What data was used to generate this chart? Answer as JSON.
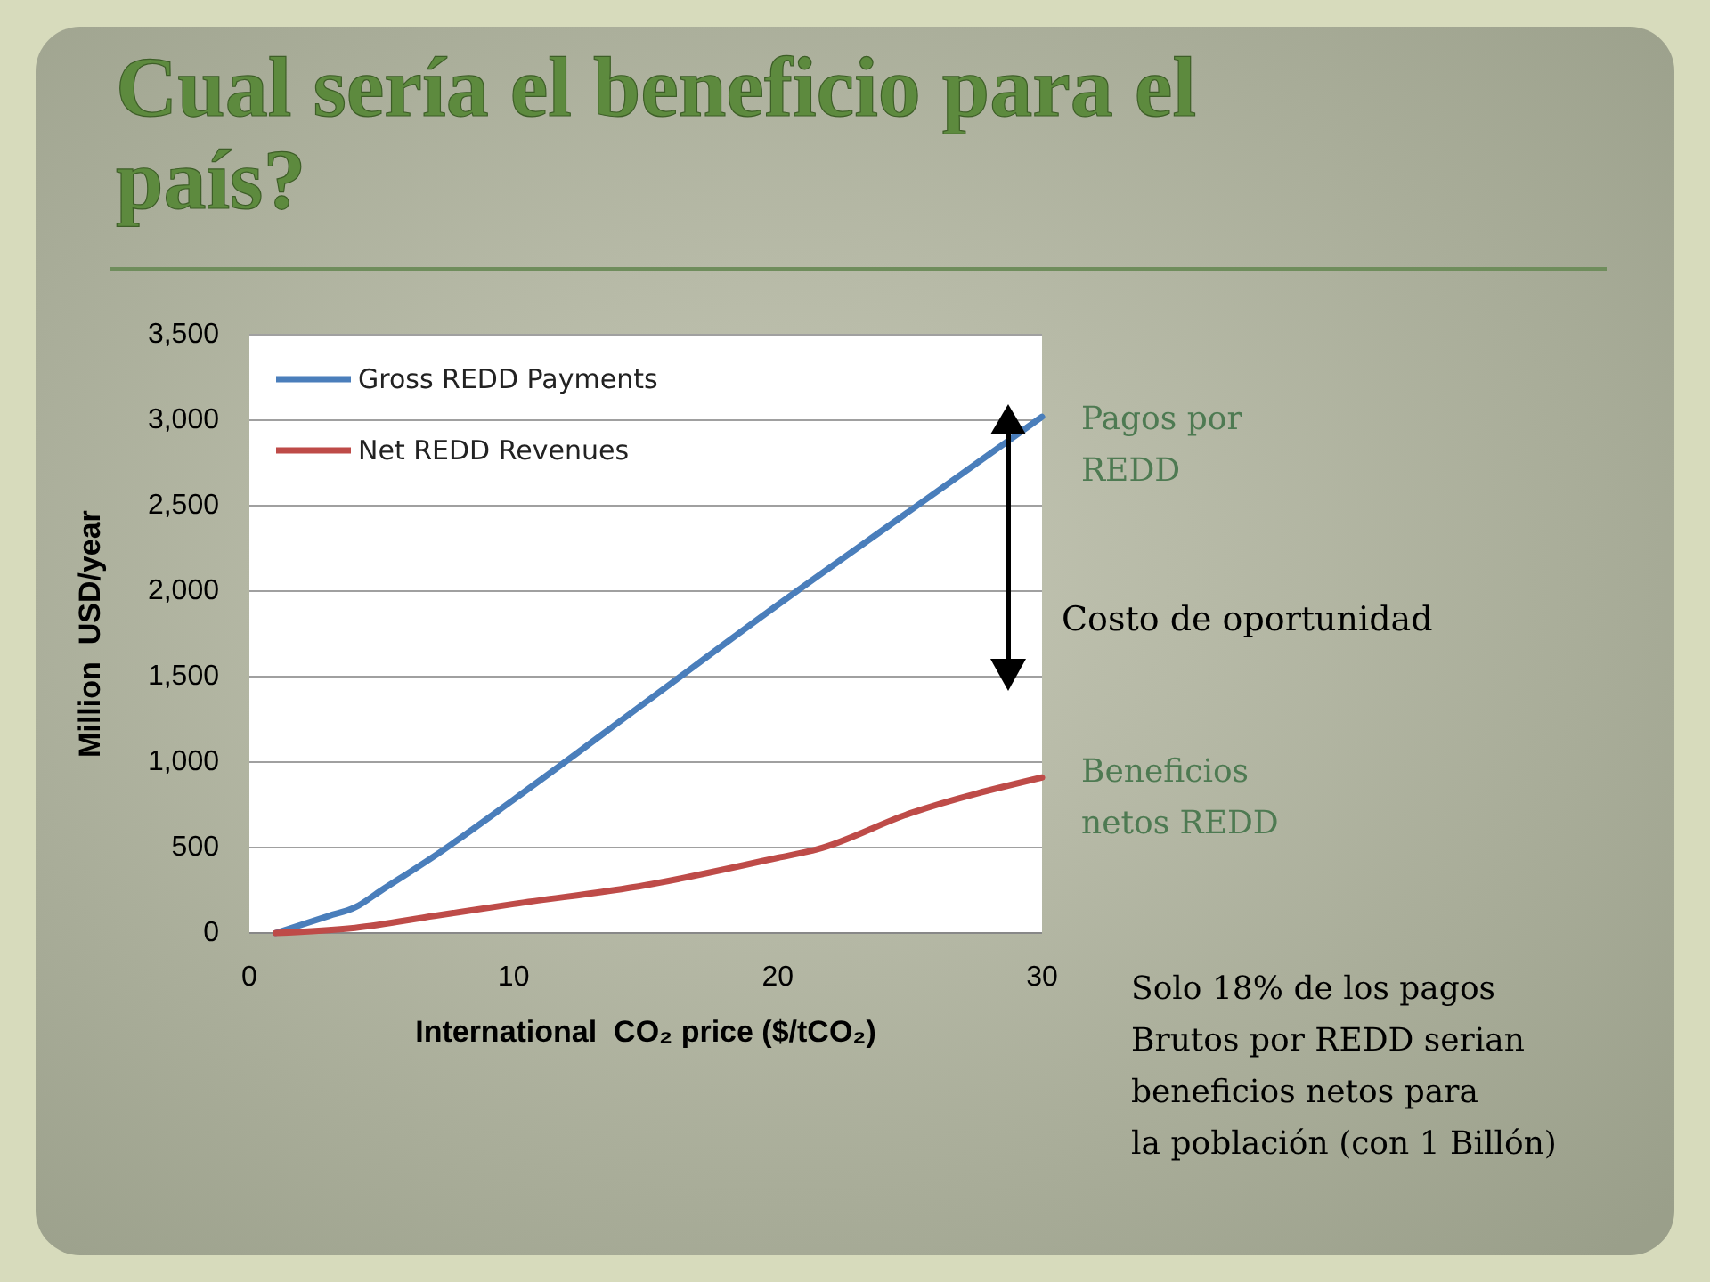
{
  "chart_data": {
    "type": "line",
    "title": "Cual sería el beneficio para el país?",
    "xlabel": "International  CO₂ price ($/tCO₂)",
    "ylabel": "Million  USD/year",
    "series": [
      {
        "name": "Gross REDD Payments",
        "color": "#4a7ebb",
        "x": [
          1,
          3,
          4,
          5,
          7,
          10,
          15,
          20,
          25,
          30
        ],
        "values": [
          0,
          100,
          150,
          250,
          450,
          780,
          1350,
          1920,
          2470,
          3020
        ]
      },
      {
        "name": "Net REDD Revenues",
        "color": "#be4b48",
        "x": [
          1,
          4,
          7,
          10,
          15,
          20,
          21.5,
          25,
          30
        ],
        "values": [
          0,
          30,
          100,
          170,
          280,
          440,
          490,
          700,
          910
        ]
      }
    ],
    "xlim": [
      0,
      30
    ],
    "xticks": [
      0,
      10,
      20,
      30
    ],
    "ylim": [
      0,
      3500
    ],
    "yticks": [
      {
        "value": 0,
        "label": "0"
      },
      {
        "value": 500,
        "label": "500"
      },
      {
        "value": 1000,
        "label": "1,000"
      },
      {
        "value": 1500,
        "label": "1,500"
      },
      {
        "value": 2000,
        "label": "2,000"
      },
      {
        "value": 2500,
        "label": "2,500"
      },
      {
        "value": 3000,
        "label": "3,000"
      },
      {
        "value": 3500,
        "label": "3,500"
      }
    ],
    "grid": "y",
    "legend": "top left",
    "marker": "none",
    "line_style": "solid",
    "annotations": [
      "Pagos por\nREDD",
      "Costo de oportunidad",
      "Beneficios\nnetos REDD",
      "Solo 18% de los pagos\nBrutos por REDD serian\nbeneficios netos para\nla población (con 1 Billón)"
    ]
  }
}
